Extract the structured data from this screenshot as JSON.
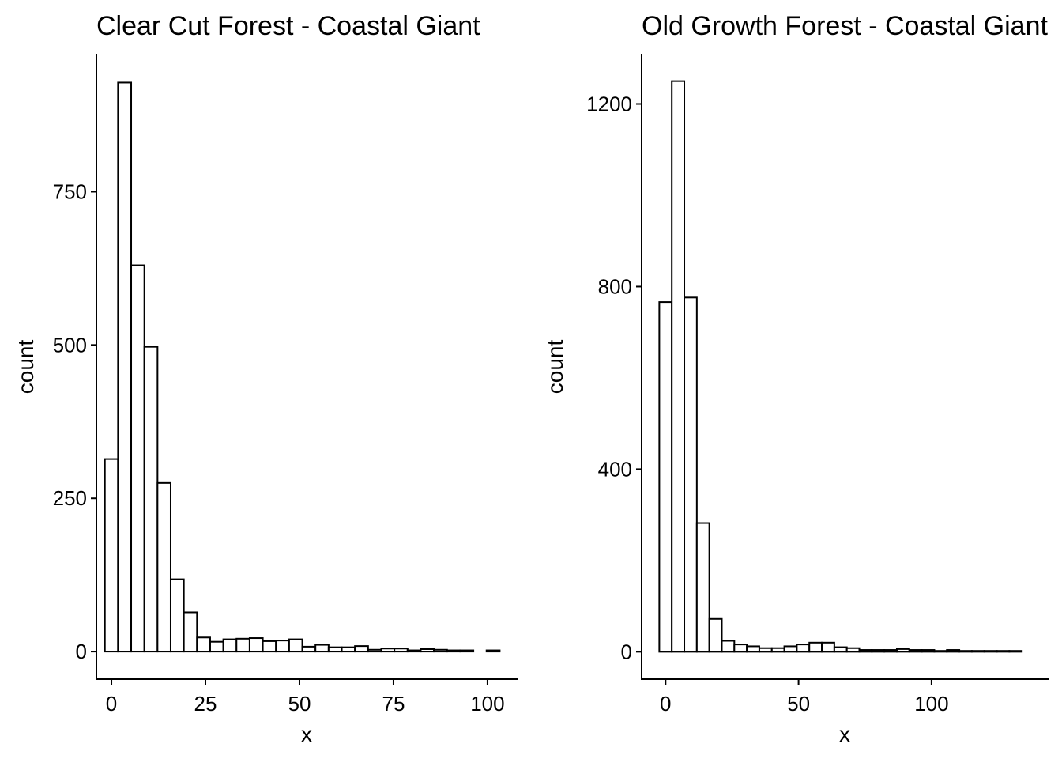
{
  "chart_data": [
    {
      "type": "bar",
      "title": "Clear Cut Forest - Coastal Giant",
      "xlabel": "x",
      "ylabel": "count",
      "xlim": [
        -4,
        108
      ],
      "ylim": [
        -45,
        975
      ],
      "xticks": [
        0,
        25,
        50,
        75,
        100
      ],
      "yticks": [
        0,
        250,
        500,
        750
      ],
      "grid": false,
      "bin_width": 3.5,
      "bin_centers": [
        0,
        3.5,
        7,
        10.5,
        14,
        17.5,
        21,
        24.5,
        28,
        31.5,
        35,
        38.5,
        42,
        45.5,
        49,
        52.5,
        56,
        59.5,
        63,
        66.5,
        70,
        73.5,
        77,
        80.5,
        84,
        87.5,
        91,
        94.5,
        98,
        101.5
      ],
      "values": [
        314,
        928,
        630,
        497,
        275,
        118,
        64,
        23,
        16,
        20,
        21,
        22,
        17,
        18,
        20,
        8,
        11,
        7,
        7,
        9,
        3,
        5,
        5,
        2,
        4,
        3,
        2,
        2,
        0,
        2
      ]
    },
    {
      "type": "bar",
      "title": "Old Growth Forest - Coastal Giant",
      "xlabel": "x",
      "ylabel": "count",
      "xlim": [
        -9,
        144
      ],
      "ylim": [
        -60,
        1310
      ],
      "xticks": [
        0,
        50,
        100
      ],
      "yticks": [
        0,
        400,
        800,
        1200
      ],
      "grid": false,
      "bin_width": 4.7,
      "bin_centers": [
        0,
        4.7,
        9.4,
        14.1,
        18.8,
        23.5,
        28.2,
        32.9,
        37.6,
        42.3,
        47,
        51.7,
        56.4,
        61.1,
        65.8,
        70.5,
        75.2,
        79.9,
        84.6,
        89.3,
        94,
        98.7,
        103.4,
        108.1,
        112.8,
        117.5,
        122.2,
        126.9,
        131.6
      ],
      "values": [
        766,
        1250,
        776,
        282,
        72,
        24,
        16,
        12,
        8,
        8,
        12,
        16,
        20,
        20,
        10,
        8,
        4,
        4,
        4,
        6,
        4,
        4,
        2,
        4,
        2,
        2,
        2,
        2,
        2
      ]
    }
  ]
}
